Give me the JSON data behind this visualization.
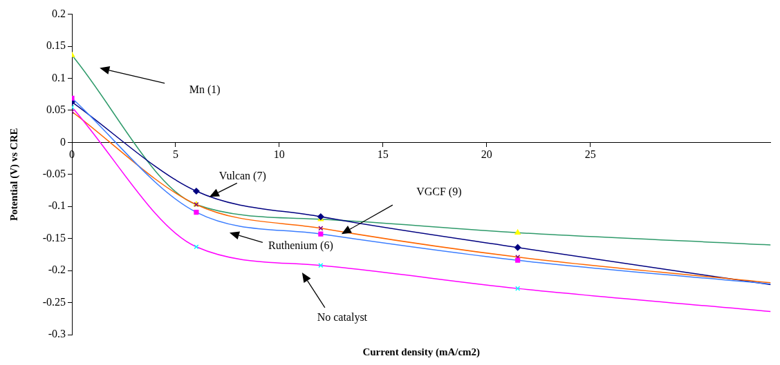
{
  "chart_data": {
    "type": "line",
    "xlabel": "Current density (mA/cm2)",
    "ylabel": "Potential (V) vs CRE",
    "xlim": [
      0,
      33.7
    ],
    "xticks": [
      0,
      5,
      10,
      15,
      20,
      25
    ],
    "ylim": [
      -0.3,
      0.2
    ],
    "yticks": [
      0.2,
      0.15,
      0.1,
      0.05,
      0,
      -0.05,
      -0.1,
      -0.15,
      -0.2,
      -0.25,
      -0.3
    ],
    "grid": false,
    "legend": false,
    "x": [
      0,
      6,
      12,
      21.5,
      33.7
    ],
    "series": [
      {
        "color": "#2e9a6a",
        "colors": [
          "#ffff00",
          "#ffff00",
          "#ffff00",
          "#ffff00",
          null
        ],
        "marker": "triangle",
        "values": [
          0.136,
          -0.097,
          -0.12,
          -0.141,
          -0.16
        ]
      },
      {
        "color": "#000080",
        "colors": [
          "#000080",
          "#000080",
          "#000080",
          "#000080",
          null
        ],
        "marker": "diamond",
        "values": [
          0.063,
          -0.076,
          -0.116,
          -0.164,
          -0.222
        ]
      },
      {
        "color": "#ff6600",
        "colors": [
          "#800080",
          "#800080",
          "#800080",
          "#800080",
          null
        ],
        "marker": "cross",
        "values": [
          0.048,
          -0.097,
          -0.134,
          -0.179,
          -0.219
        ]
      },
      {
        "color": "#3b7dff",
        "colors": [
          "#ff00ff",
          "#ff00ff",
          "#ff00ff",
          "#ff00ff",
          null
        ],
        "marker": "square",
        "values": [
          0.069,
          -0.109,
          -0.143,
          -0.184,
          -0.221
        ]
      },
      {
        "color": "#ff00ff",
        "colors": [
          "#00ffff",
          "#00ffff",
          "#00ffff",
          "#00ffff",
          null
        ],
        "marker": "cross",
        "values": [
          0.055,
          -0.163,
          -0.192,
          -0.228,
          -0.264
        ]
      }
    ],
    "annotations": [
      "Mn (1)",
      {
        "text": "Vulcan (7)",
        "x": 6.63,
        "y": -0.085
      },
      "VGCF (9)",
      "Ruthenium (6)",
      "No catalyst"
    ]
  }
}
